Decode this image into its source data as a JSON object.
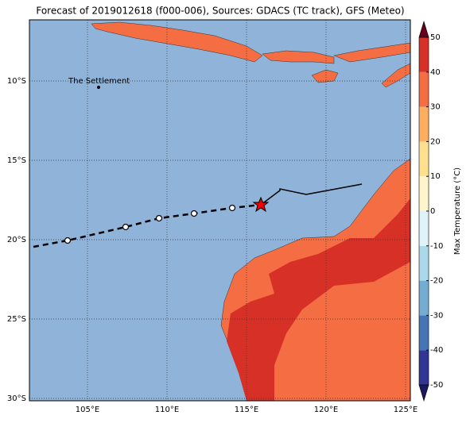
{
  "title": "Forecast of 2019012618 (f000-006), Sources: GDACS (TC track), GFS (Meteo)",
  "map": {
    "place_label": "The Settlement",
    "lonlim": [
      101.35,
      125.3
    ],
    "latlim": [
      -6.15,
      -30.15
    ],
    "lon_ticks": [
      {
        "value": 105,
        "label": "105°E"
      },
      {
        "value": 110,
        "label": "110°E"
      },
      {
        "value": 115,
        "label": "115°E"
      },
      {
        "value": 120,
        "label": "120°E"
      },
      {
        "value": 125,
        "label": "125°E"
      }
    ],
    "lat_ticks": [
      {
        "value": -10,
        "label": "10°S"
      },
      {
        "value": -15,
        "label": "15°S"
      },
      {
        "value": -20,
        "label": "20°S"
      },
      {
        "value": -25,
        "label": "25°S"
      },
      {
        "value": -30,
        "label": "30°S"
      }
    ]
  },
  "colorbar": {
    "label": "Max Temperature (°C)",
    "lim": [
      -50,
      50
    ],
    "ticks": [
      -50,
      -40,
      -30,
      -20,
      -10,
      0,
      10,
      20,
      30,
      40,
      50
    ],
    "colors": [
      "#313695",
      "#4575b4",
      "#74add1",
      "#abd9e9",
      "#e0f3f8",
      "#fff5cc",
      "#fee090",
      "#fdae61",
      "#f46d43",
      "#d73027",
      "#a50026"
    ],
    "extend_colors": [
      "#1a1a5e",
      "#67001f"
    ]
  }
}
